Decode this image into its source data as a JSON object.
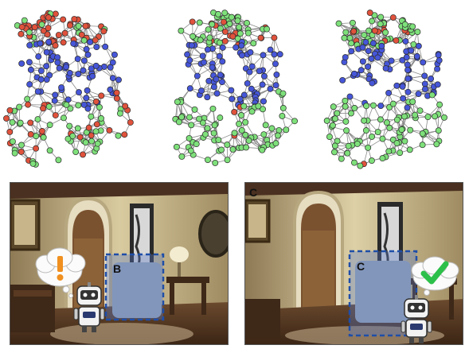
{
  "colors": {
    "node_blue": "#4656d8",
    "node_green": "#7ee07a",
    "node_red": "#e0523c",
    "edge": "#8a8a8a",
    "box": "#1f4ea8"
  },
  "graphs": [
    {
      "name": "graph-before",
      "red_ratio": 0.35
    },
    {
      "name": "graph-middle",
      "red_ratio": 0.06
    },
    {
      "name": "graph-after",
      "red_ratio": 0.02
    }
  ],
  "scene_left": {
    "object_label": "B",
    "bubble_icon": "exclamation-icon"
  },
  "scene_right": {
    "object_label": "C",
    "corner_label": "C",
    "bubble_icon": "checkmark-icon"
  }
}
